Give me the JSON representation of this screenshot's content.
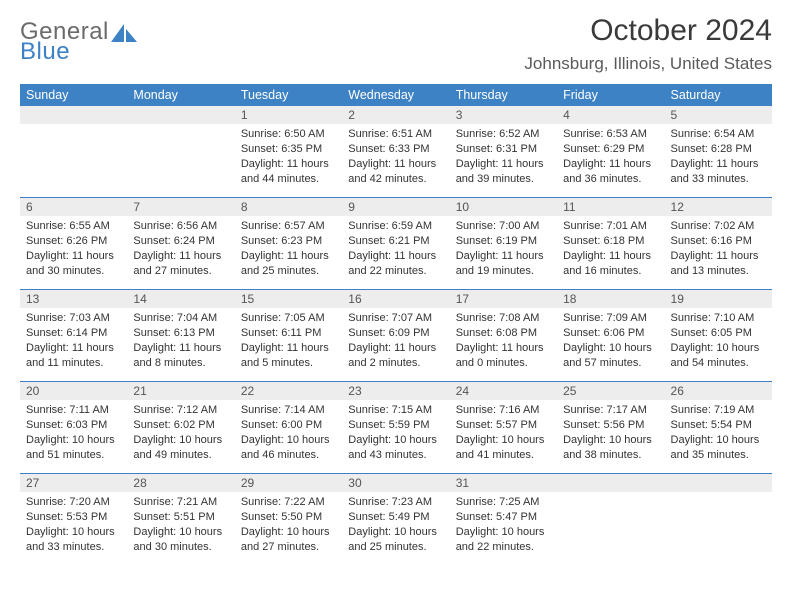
{
  "logo": {
    "word1": "General",
    "word2": "Blue",
    "shape_color": "#3d82c4"
  },
  "title": "October 2024",
  "location": "Johnsburg, Illinois, United States",
  "colors": {
    "header_bg": "#3d82c4",
    "header_fg": "#ffffff",
    "daynum_bg": "#ededed",
    "rule": "#3d82c4"
  },
  "day_headers": [
    "Sunday",
    "Monday",
    "Tuesday",
    "Wednesday",
    "Thursday",
    "Friday",
    "Saturday"
  ],
  "weeks": [
    [
      null,
      null,
      {
        "n": "1",
        "sunrise": "6:50 AM",
        "sunset": "6:35 PM",
        "daylight": "11 hours and 44 minutes."
      },
      {
        "n": "2",
        "sunrise": "6:51 AM",
        "sunset": "6:33 PM",
        "daylight": "11 hours and 42 minutes."
      },
      {
        "n": "3",
        "sunrise": "6:52 AM",
        "sunset": "6:31 PM",
        "daylight": "11 hours and 39 minutes."
      },
      {
        "n": "4",
        "sunrise": "6:53 AM",
        "sunset": "6:29 PM",
        "daylight": "11 hours and 36 minutes."
      },
      {
        "n": "5",
        "sunrise": "6:54 AM",
        "sunset": "6:28 PM",
        "daylight": "11 hours and 33 minutes."
      }
    ],
    [
      {
        "n": "6",
        "sunrise": "6:55 AM",
        "sunset": "6:26 PM",
        "daylight": "11 hours and 30 minutes."
      },
      {
        "n": "7",
        "sunrise": "6:56 AM",
        "sunset": "6:24 PM",
        "daylight": "11 hours and 27 minutes."
      },
      {
        "n": "8",
        "sunrise": "6:57 AM",
        "sunset": "6:23 PM",
        "daylight": "11 hours and 25 minutes."
      },
      {
        "n": "9",
        "sunrise": "6:59 AM",
        "sunset": "6:21 PM",
        "daylight": "11 hours and 22 minutes."
      },
      {
        "n": "10",
        "sunrise": "7:00 AM",
        "sunset": "6:19 PM",
        "daylight": "11 hours and 19 minutes."
      },
      {
        "n": "11",
        "sunrise": "7:01 AM",
        "sunset": "6:18 PM",
        "daylight": "11 hours and 16 minutes."
      },
      {
        "n": "12",
        "sunrise": "7:02 AM",
        "sunset": "6:16 PM",
        "daylight": "11 hours and 13 minutes."
      }
    ],
    [
      {
        "n": "13",
        "sunrise": "7:03 AM",
        "sunset": "6:14 PM",
        "daylight": "11 hours and 11 minutes."
      },
      {
        "n": "14",
        "sunrise": "7:04 AM",
        "sunset": "6:13 PM",
        "daylight": "11 hours and 8 minutes."
      },
      {
        "n": "15",
        "sunrise": "7:05 AM",
        "sunset": "6:11 PM",
        "daylight": "11 hours and 5 minutes."
      },
      {
        "n": "16",
        "sunrise": "7:07 AM",
        "sunset": "6:09 PM",
        "daylight": "11 hours and 2 minutes."
      },
      {
        "n": "17",
        "sunrise": "7:08 AM",
        "sunset": "6:08 PM",
        "daylight": "11 hours and 0 minutes."
      },
      {
        "n": "18",
        "sunrise": "7:09 AM",
        "sunset": "6:06 PM",
        "daylight": "10 hours and 57 minutes."
      },
      {
        "n": "19",
        "sunrise": "7:10 AM",
        "sunset": "6:05 PM",
        "daylight": "10 hours and 54 minutes."
      }
    ],
    [
      {
        "n": "20",
        "sunrise": "7:11 AM",
        "sunset": "6:03 PM",
        "daylight": "10 hours and 51 minutes."
      },
      {
        "n": "21",
        "sunrise": "7:12 AM",
        "sunset": "6:02 PM",
        "daylight": "10 hours and 49 minutes."
      },
      {
        "n": "22",
        "sunrise": "7:14 AM",
        "sunset": "6:00 PM",
        "daylight": "10 hours and 46 minutes."
      },
      {
        "n": "23",
        "sunrise": "7:15 AM",
        "sunset": "5:59 PM",
        "daylight": "10 hours and 43 minutes."
      },
      {
        "n": "24",
        "sunrise": "7:16 AM",
        "sunset": "5:57 PM",
        "daylight": "10 hours and 41 minutes."
      },
      {
        "n": "25",
        "sunrise": "7:17 AM",
        "sunset": "5:56 PM",
        "daylight": "10 hours and 38 minutes."
      },
      {
        "n": "26",
        "sunrise": "7:19 AM",
        "sunset": "5:54 PM",
        "daylight": "10 hours and 35 minutes."
      }
    ],
    [
      {
        "n": "27",
        "sunrise": "7:20 AM",
        "sunset": "5:53 PM",
        "daylight": "10 hours and 33 minutes."
      },
      {
        "n": "28",
        "sunrise": "7:21 AM",
        "sunset": "5:51 PM",
        "daylight": "10 hours and 30 minutes."
      },
      {
        "n": "29",
        "sunrise": "7:22 AM",
        "sunset": "5:50 PM",
        "daylight": "10 hours and 27 minutes."
      },
      {
        "n": "30",
        "sunrise": "7:23 AM",
        "sunset": "5:49 PM",
        "daylight": "10 hours and 25 minutes."
      },
      {
        "n": "31",
        "sunrise": "7:25 AM",
        "sunset": "5:47 PM",
        "daylight": "10 hours and 22 minutes."
      },
      null,
      null
    ]
  ],
  "labels": {
    "sunrise": "Sunrise:",
    "sunset": "Sunset:",
    "daylight": "Daylight:"
  }
}
